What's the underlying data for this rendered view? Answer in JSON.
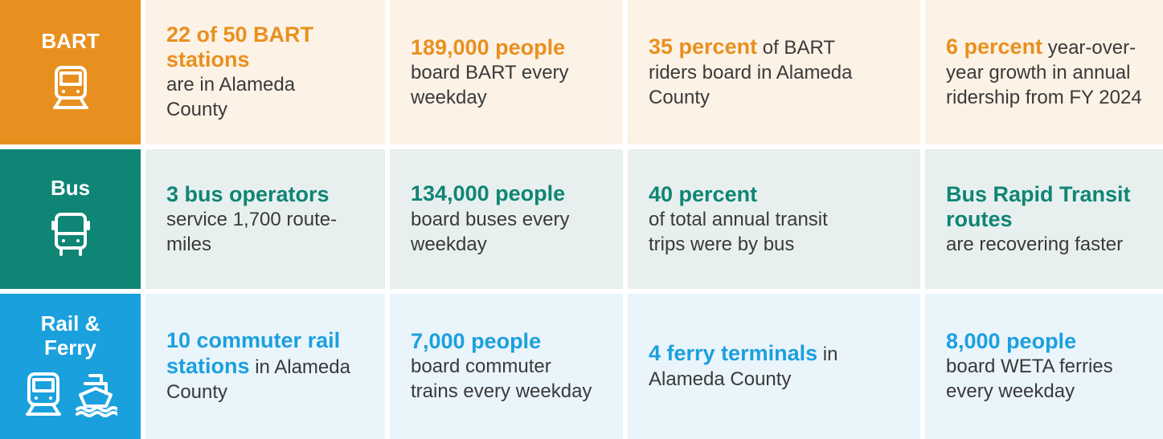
{
  "rows": [
    {
      "label": "BART",
      "cells": [
        {
          "lead": "22 of 50 BART stations",
          "rest": "are in Alameda County"
        },
        {
          "lead": "189,000 people",
          "rest": "board BART every weekday"
        },
        {
          "lead": "35 percent",
          "rest": "of BART riders board in Alameda County"
        },
        {
          "lead": "6 percent",
          "rest": "year-over-year growth in annual ridership from FY 2024"
        }
      ]
    },
    {
      "label": "Bus",
      "cells": [
        {
          "lead": "3 bus operators",
          "rest": "service 1,700 route-miles"
        },
        {
          "lead": "134,000 people",
          "rest": "board buses every weekday"
        },
        {
          "lead": "40 percent",
          "rest": "of total annual transit trips were by bus"
        },
        {
          "lead": "Bus Rapid Transit routes",
          "rest": "are recovering faster"
        }
      ]
    },
    {
      "label": "Rail & Ferry",
      "cells": [
        {
          "lead": "10 commuter rail stations",
          "rest": "in Alameda County"
        },
        {
          "lead": "7,000 people",
          "rest": "board commuter trains every weekday"
        },
        {
          "lead": "4 ferry terminals",
          "rest": "in Alameda County"
        },
        {
          "lead": "8,000 people",
          "rest": "board WETA ferries every weekday"
        }
      ]
    }
  ]
}
